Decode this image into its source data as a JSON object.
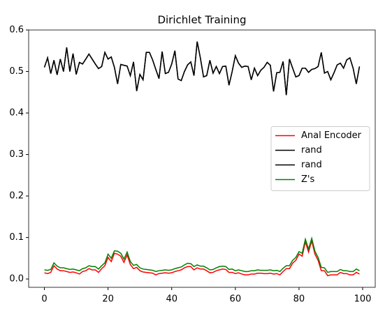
{
  "chart_data": {
    "type": "line",
    "title": "Dirichlet Training",
    "x": [
      0,
      1,
      2,
      3,
      4,
      5,
      6,
      7,
      8,
      9,
      10,
      11,
      12,
      13,
      14,
      15,
      16,
      17,
      18,
      19,
      20,
      21,
      22,
      23,
      24,
      25,
      26,
      27,
      28,
      29,
      30,
      31,
      32,
      33,
      34,
      35,
      36,
      37,
      38,
      39,
      40,
      41,
      42,
      43,
      44,
      45,
      46,
      47,
      48,
      49,
      50,
      51,
      52,
      53,
      54,
      55,
      56,
      57,
      58,
      59,
      60,
      61,
      62,
      63,
      64,
      65,
      66,
      67,
      68,
      69,
      70,
      71,
      72,
      73,
      74,
      75,
      76,
      77,
      78,
      79,
      80,
      81,
      82,
      83,
      84,
      85,
      86,
      87,
      88,
      89,
      90,
      91,
      92,
      93,
      94,
      95,
      96,
      97,
      98,
      99
    ],
    "series": [
      {
        "name": "Anal Encoder",
        "color": "#ff0000",
        "values": [
          0.015,
          0.013,
          0.016,
          0.032,
          0.024,
          0.02,
          0.02,
          0.018,
          0.016,
          0.017,
          0.015,
          0.012,
          0.018,
          0.02,
          0.025,
          0.022,
          0.022,
          0.016,
          0.025,
          0.032,
          0.052,
          0.042,
          0.062,
          0.06,
          0.055,
          0.04,
          0.058,
          0.035,
          0.025,
          0.028,
          0.02,
          0.017,
          0.016,
          0.015,
          0.014,
          0.01,
          0.013,
          0.014,
          0.015,
          0.014,
          0.015,
          0.018,
          0.02,
          0.022,
          0.027,
          0.03,
          0.03,
          0.022,
          0.027,
          0.024,
          0.024,
          0.02,
          0.015,
          0.016,
          0.02,
          0.022,
          0.024,
          0.023,
          0.016,
          0.016,
          0.013,
          0.015,
          0.012,
          0.01,
          0.01,
          0.012,
          0.012,
          0.014,
          0.014,
          0.013,
          0.013,
          0.014,
          0.012,
          0.013,
          0.01,
          0.018,
          0.025,
          0.025,
          0.038,
          0.045,
          0.06,
          0.055,
          0.09,
          0.065,
          0.092,
          0.06,
          0.045,
          0.02,
          0.02,
          0.008,
          0.01,
          0.01,
          0.01,
          0.016,
          0.013,
          0.013,
          0.01,
          0.01,
          0.016,
          0.012
        ]
      },
      {
        "name": "rand",
        "color": "#000000",
        "values": [
          0.51,
          0.533,
          0.495,
          0.527,
          0.492,
          0.53,
          0.5,
          0.558,
          0.5,
          0.543,
          0.493,
          0.522,
          0.518,
          0.53,
          0.542,
          0.53,
          0.518,
          0.507,
          0.512,
          0.546,
          0.53,
          0.535,
          0.51,
          0.47,
          0.517,
          0.515,
          0.513,
          0.49,
          0.523,
          0.453,
          0.493,
          0.48,
          0.546,
          0.546,
          0.528,
          0.505,
          0.483,
          0.548,
          0.495,
          0.498,
          0.518,
          0.55,
          0.482,
          0.478,
          0.5,
          0.516,
          0.523,
          0.49,
          0.572,
          0.533,
          0.487,
          0.49,
          0.527,
          0.496,
          0.512,
          0.495,
          0.512,
          0.513,
          0.467,
          0.5,
          0.538,
          0.52,
          0.51,
          0.513,
          0.512,
          0.48,
          0.508,
          0.49,
          0.503,
          0.51,
          0.522,
          0.515,
          0.452,
          0.497,
          0.498,
          0.524,
          0.443,
          0.53,
          0.508,
          0.487,
          0.49,
          0.508,
          0.508,
          0.498,
          0.505,
          0.507,
          0.512,
          0.546,
          0.496,
          0.5,
          0.48,
          0.497,
          0.516,
          0.52,
          0.508,
          0.528,
          0.533,
          0.508,
          0.47,
          0.512
        ]
      },
      {
        "name": "rand",
        "color": "#000000",
        "values": [
          0.51,
          0.533,
          0.495,
          0.527,
          0.492,
          0.53,
          0.5,
          0.558,
          0.5,
          0.543,
          0.493,
          0.522,
          0.518,
          0.53,
          0.542,
          0.53,
          0.518,
          0.507,
          0.512,
          0.546,
          0.53,
          0.535,
          0.51,
          0.47,
          0.517,
          0.515,
          0.513,
          0.49,
          0.523,
          0.453,
          0.493,
          0.48,
          0.546,
          0.546,
          0.528,
          0.505,
          0.483,
          0.548,
          0.495,
          0.498,
          0.518,
          0.55,
          0.482,
          0.478,
          0.5,
          0.516,
          0.523,
          0.49,
          0.572,
          0.533,
          0.487,
          0.49,
          0.527,
          0.496,
          0.512,
          0.495,
          0.512,
          0.513,
          0.467,
          0.5,
          0.538,
          0.52,
          0.51,
          0.513,
          0.512,
          0.48,
          0.508,
          0.49,
          0.503,
          0.51,
          0.522,
          0.515,
          0.452,
          0.497,
          0.498,
          0.524,
          0.443,
          0.53,
          0.508,
          0.487,
          0.49,
          0.508,
          0.508,
          0.498,
          0.505,
          0.507,
          0.512,
          0.546,
          0.496,
          0.5,
          0.48,
          0.497,
          0.516,
          0.52,
          0.508,
          0.528,
          0.533,
          0.508,
          0.47,
          0.512
        ]
      },
      {
        "name": "Z's",
        "color": "#008000",
        "values": [
          0.022,
          0.021,
          0.023,
          0.039,
          0.031,
          0.027,
          0.027,
          0.025,
          0.023,
          0.024,
          0.022,
          0.02,
          0.025,
          0.027,
          0.032,
          0.03,
          0.03,
          0.024,
          0.032,
          0.039,
          0.06,
          0.05,
          0.068,
          0.067,
          0.062,
          0.048,
          0.065,
          0.042,
          0.033,
          0.035,
          0.027,
          0.024,
          0.023,
          0.022,
          0.021,
          0.018,
          0.02,
          0.021,
          0.022,
          0.021,
          0.022,
          0.025,
          0.027,
          0.029,
          0.034,
          0.038,
          0.037,
          0.03,
          0.034,
          0.031,
          0.031,
          0.027,
          0.022,
          0.023,
          0.027,
          0.03,
          0.031,
          0.03,
          0.023,
          0.024,
          0.02,
          0.022,
          0.02,
          0.018,
          0.018,
          0.02,
          0.02,
          0.022,
          0.021,
          0.021,
          0.021,
          0.022,
          0.02,
          0.021,
          0.018,
          0.026,
          0.032,
          0.032,
          0.045,
          0.052,
          0.066,
          0.062,
          0.096,
          0.072,
          0.098,
          0.067,
          0.052,
          0.028,
          0.027,
          0.016,
          0.018,
          0.018,
          0.018,
          0.023,
          0.02,
          0.02,
          0.018,
          0.018,
          0.024,
          0.02
        ]
      }
    ],
    "xlim": [
      -4.95,
      103.95
    ],
    "xticks": [
      0,
      20,
      40,
      60,
      80,
      100
    ],
    "ylim": [
      -0.02,
      0.6
    ],
    "yticks": [
      {
        "value": 0,
        "label": "0.0"
      },
      0.1,
      0.2,
      0.3,
      0.4,
      0.5,
      0.6
    ],
    "legend": "center right",
    "grid": false
  }
}
